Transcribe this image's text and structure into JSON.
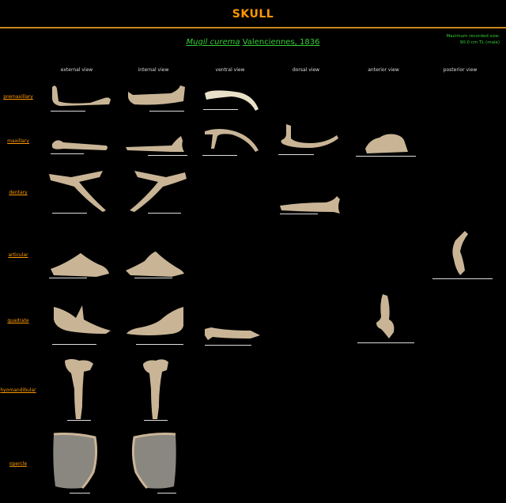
{
  "page": {
    "title": "SKULL",
    "species_scientific": "Mugil curema",
    "species_author": "Valenciennes, 1836",
    "max_size_line1": "Maximum recorded size:",
    "max_size_line2": "90.0 cm TL (male)"
  },
  "columns": [
    "external view",
    "internal view",
    "ventral view",
    "dorsal view",
    "anterior view",
    "posterior view"
  ],
  "rows": [
    "premaxillary",
    "maxillary",
    "dentary",
    "articular",
    "quadrate",
    "hyomandibular",
    "opercle"
  ],
  "colors": {
    "title": "#ff9900",
    "rule": "#c8871c",
    "species": "#33cc33",
    "bone": "#c9b596",
    "scale_bar": "#dddddd"
  }
}
